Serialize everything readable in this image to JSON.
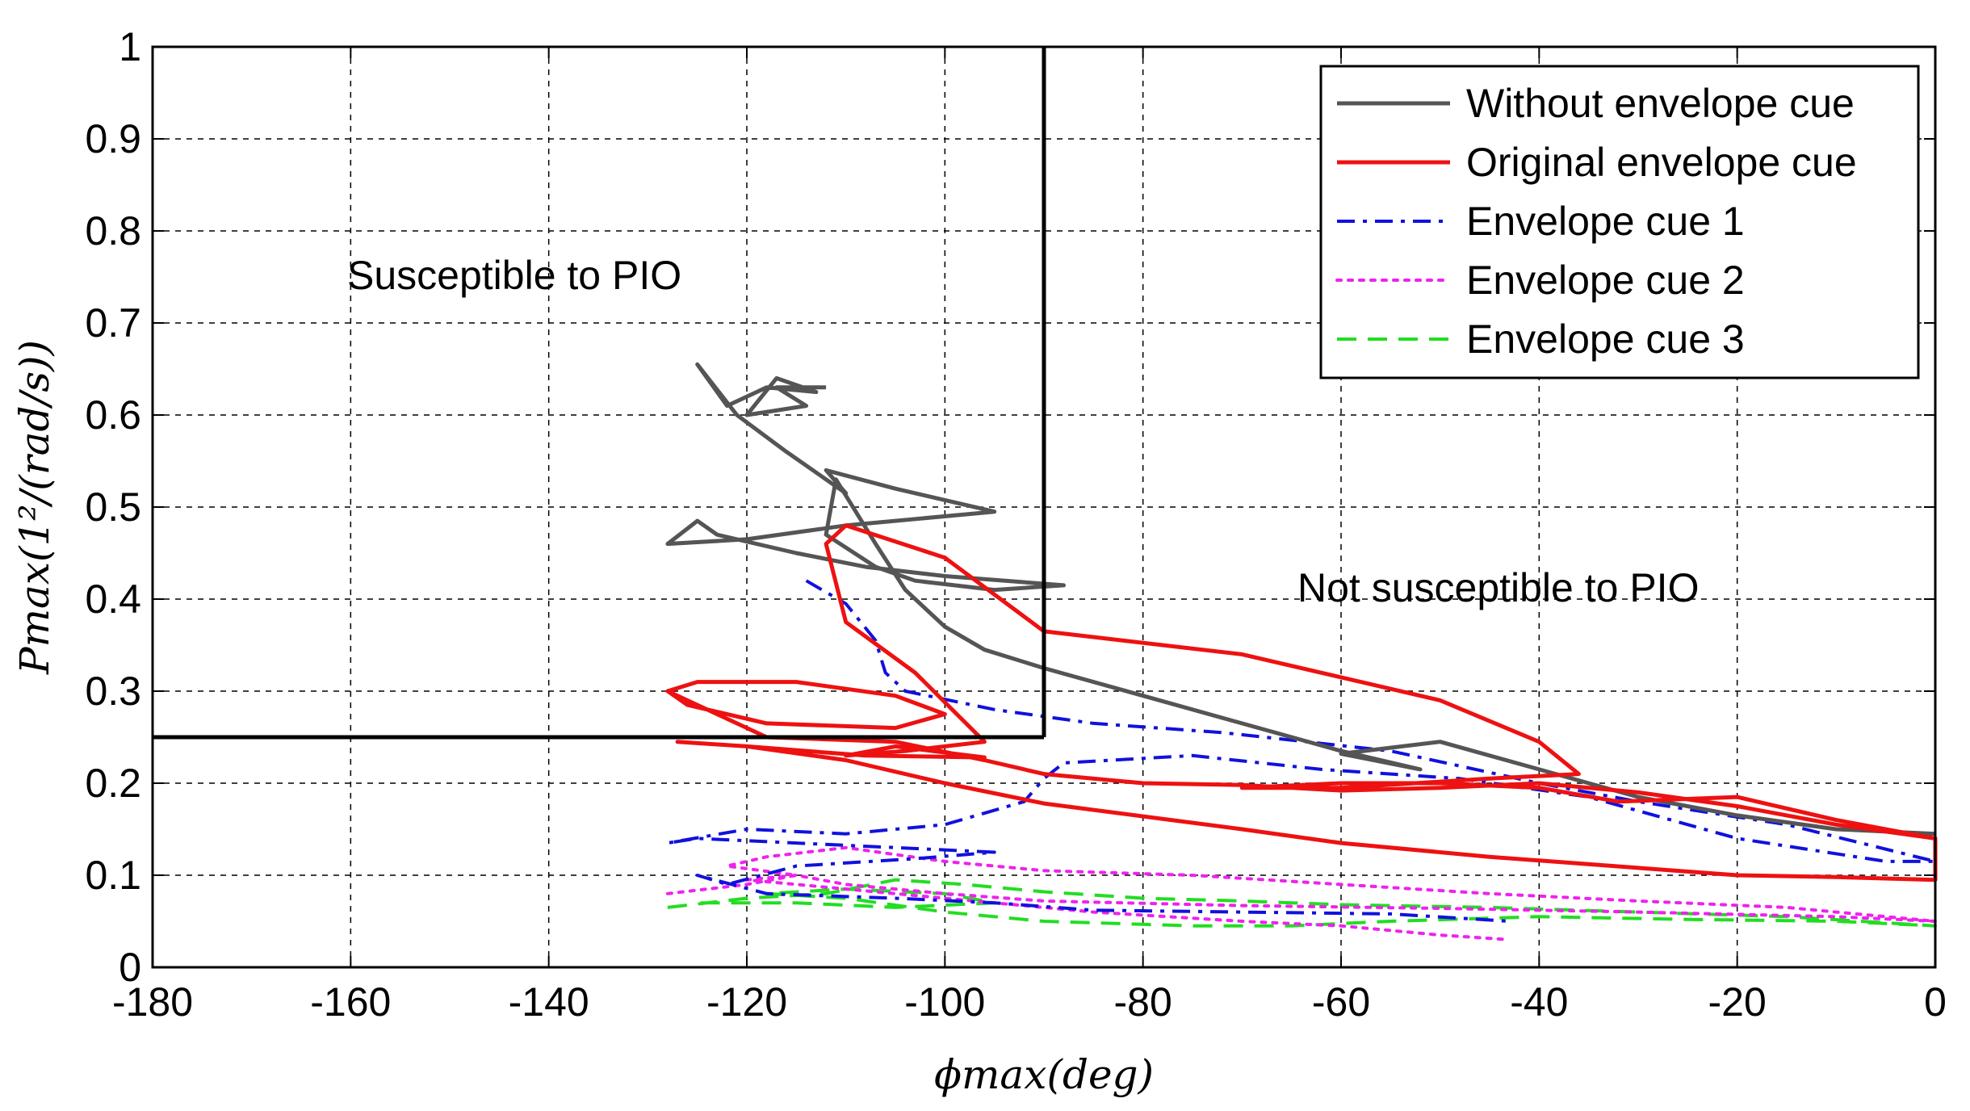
{
  "chart_data": {
    "type": "line",
    "title": "",
    "xlabel": "ϕmax(deg)",
    "ylabel": "Pmax(1²/(rad/s))",
    "xlim": [
      -180,
      0
    ],
    "ylim": [
      0,
      1
    ],
    "xticks": [
      "-180",
      "-160",
      "-140",
      "-120",
      "-100",
      "-80",
      "-60",
      "-40",
      "-20",
      "0"
    ],
    "yticks": [
      "0",
      "0.1",
      "0.2",
      "0.3",
      "0.4",
      "0.5",
      "0.6",
      "0.7",
      "0.8",
      "0.9",
      "1"
    ],
    "grid": true,
    "legend_position": "top-right",
    "boundary": {
      "vertical_x": -90,
      "horizontal_y": 0.25,
      "label_inside": "Susceptible to PIO",
      "label_outside": "Not susceptible to PIO"
    },
    "series": [
      {
        "name": "Without envelope cue",
        "color": "#555555",
        "style": "solid",
        "points": [
          [
            -112,
            0.63
          ],
          [
            -117,
            0.63
          ],
          [
            -114,
            0.61
          ],
          [
            -120,
            0.6
          ],
          [
            -117,
            0.64
          ],
          [
            -113,
            0.625
          ],
          [
            -118,
            0.63
          ],
          [
            -122,
            0.61
          ],
          [
            -125,
            0.655
          ],
          [
            -121,
            0.6
          ],
          [
            -116,
            0.56
          ],
          [
            -110,
            0.515
          ],
          [
            -112,
            0.54
          ],
          [
            -105,
            0.52
          ],
          [
            -95,
            0.495
          ],
          [
            -110,
            0.48
          ],
          [
            -120,
            0.465
          ],
          [
            -128,
            0.46
          ],
          [
            -125,
            0.485
          ],
          [
            -123,
            0.47
          ],
          [
            -115,
            0.45
          ],
          [
            -108,
            0.435
          ],
          [
            -100,
            0.425
          ],
          [
            -88,
            0.415
          ],
          [
            -95,
            0.41
          ],
          [
            -103,
            0.42
          ],
          [
            -107,
            0.435
          ],
          [
            -112,
            0.47
          ],
          [
            -111,
            0.53
          ],
          [
            -107,
            0.46
          ],
          [
            -104,
            0.41
          ],
          [
            -100,
            0.37
          ],
          [
            -96,
            0.345
          ],
          [
            -90,
            0.325
          ],
          [
            -80,
            0.295
          ],
          [
            -70,
            0.265
          ],
          [
            -60,
            0.235
          ],
          [
            -52,
            0.215
          ],
          [
            -60,
            0.232
          ],
          [
            -50,
            0.245
          ],
          [
            -40,
            0.215
          ],
          [
            -30,
            0.185
          ],
          [
            -20,
            0.165
          ],
          [
            -10,
            0.15
          ],
          [
            0,
            0.145
          ]
        ]
      },
      {
        "name": "Original envelope cue",
        "color": "#ee1111",
        "style": "solid",
        "points": [
          [
            -128,
            0.3
          ],
          [
            -125,
            0.31
          ],
          [
            -115,
            0.31
          ],
          [
            -105,
            0.295
          ],
          [
            -100,
            0.275
          ],
          [
            -105,
            0.26
          ],
          [
            -118,
            0.265
          ],
          [
            -126,
            0.285
          ],
          [
            -128,
            0.3
          ],
          [
            -125,
            0.285
          ],
          [
            -118,
            0.25
          ],
          [
            -105,
            0.245
          ],
          [
            -96,
            0.225
          ],
          [
            -90,
            0.21
          ],
          [
            -80,
            0.2
          ],
          [
            -70,
            0.198
          ],
          [
            -60,
            0.192
          ],
          [
            -50,
            0.195
          ],
          [
            -40,
            0.2
          ],
          [
            -30,
            0.19
          ],
          [
            -20,
            0.175
          ],
          [
            -10,
            0.155
          ],
          [
            0,
            0.14
          ],
          [
            0,
            0.095
          ],
          [
            -10,
            0.098
          ],
          [
            -20,
            0.1
          ],
          [
            -30,
            0.108
          ],
          [
            -45,
            0.12
          ],
          [
            -60,
            0.135
          ],
          [
            -70,
            0.15
          ],
          [
            -90,
            0.178
          ],
          [
            -100,
            0.2
          ],
          [
            -110,
            0.225
          ],
          [
            -120,
            0.24
          ],
          [
            -127,
            0.245
          ],
          [
            -120,
            0.24
          ],
          [
            -108,
            0.23
          ],
          [
            -96,
            0.228
          ],
          [
            -105,
            0.24
          ],
          [
            -110,
            0.23
          ],
          [
            -104,
            0.235
          ],
          [
            -96,
            0.245
          ],
          [
            -103,
            0.32
          ],
          [
            -110,
            0.375
          ],
          [
            -112,
            0.46
          ],
          [
            -110,
            0.48
          ],
          [
            -100,
            0.445
          ],
          [
            -90,
            0.365
          ],
          [
            -70,
            0.34
          ],
          [
            -50,
            0.29
          ],
          [
            -40,
            0.245
          ],
          [
            -36,
            0.21
          ],
          [
            -45,
            0.205
          ],
          [
            -60,
            0.195
          ],
          [
            -70,
            0.195
          ],
          [
            -60,
            0.2
          ],
          [
            -50,
            0.2
          ],
          [
            -40,
            0.195
          ],
          [
            -32,
            0.18
          ],
          [
            -20,
            0.185
          ],
          [
            -10,
            0.16
          ],
          [
            0,
            0.14
          ]
        ]
      },
      {
        "name": "Envelope cue 1",
        "color": "#1111dd",
        "style": "dashdot",
        "points": [
          [
            -114,
            0.42
          ],
          [
            -110,
            0.395
          ],
          [
            -107,
            0.355
          ],
          [
            -106,
            0.32
          ],
          [
            -104,
            0.3
          ],
          [
            -95,
            0.28
          ],
          [
            -85,
            0.265
          ],
          [
            -72,
            0.255
          ],
          [
            -55,
            0.235
          ],
          [
            -40,
            0.2
          ],
          [
            -30,
            0.18
          ],
          [
            -15,
            0.155
          ],
          [
            0,
            0.115
          ],
          [
            -5,
            0.115
          ],
          [
            -20,
            0.14
          ],
          [
            -35,
            0.185
          ],
          [
            -48,
            0.205
          ],
          [
            -62,
            0.215
          ],
          [
            -75,
            0.23
          ],
          [
            -88,
            0.222
          ],
          [
            -90,
            0.205
          ],
          [
            -92,
            0.18
          ],
          [
            -100,
            0.155
          ],
          [
            -110,
            0.145
          ],
          [
            -120,
            0.15
          ],
          [
            -128,
            0.135
          ],
          [
            -125,
            0.14
          ],
          [
            -115,
            0.135
          ],
          [
            -105,
            0.13
          ],
          [
            -95,
            0.125
          ],
          [
            -103,
            0.118
          ],
          [
            -115,
            0.11
          ],
          [
            -122,
            0.09
          ],
          [
            -125,
            0.1
          ],
          [
            -118,
            0.08
          ],
          [
            -105,
            0.075
          ],
          [
            -95,
            0.07
          ],
          [
            -85,
            0.062
          ],
          [
            -70,
            0.06
          ],
          [
            -55,
            0.058
          ],
          [
            -43,
            0.05
          ]
        ]
      },
      {
        "name": "Envelope cue 2",
        "color": "#ee22ee",
        "style": "dotted",
        "points": [
          [
            -128,
            0.08
          ],
          [
            -120,
            0.09
          ],
          [
            -115,
            0.1
          ],
          [
            -122,
            0.11
          ],
          [
            -118,
            0.12
          ],
          [
            -110,
            0.13
          ],
          [
            -100,
            0.115
          ],
          [
            -90,
            0.105
          ],
          [
            -75,
            0.1
          ],
          [
            -60,
            0.09
          ],
          [
            -45,
            0.08
          ],
          [
            -30,
            0.072
          ],
          [
            -15,
            0.065
          ],
          [
            0,
            0.05
          ],
          [
            -10,
            0.055
          ],
          [
            -30,
            0.06
          ],
          [
            -50,
            0.064
          ],
          [
            -70,
            0.067
          ],
          [
            -90,
            0.072
          ],
          [
            -100,
            0.08
          ],
          [
            -110,
            0.09
          ],
          [
            -115,
            0.1
          ],
          [
            -120,
            0.095
          ],
          [
            -110,
            0.085
          ],
          [
            -100,
            0.075
          ],
          [
            -85,
            0.06
          ],
          [
            -70,
            0.05
          ],
          [
            -60,
            0.045
          ],
          [
            -50,
            0.035
          ],
          [
            -43,
            0.03
          ]
        ]
      },
      {
        "name": "Envelope cue 3",
        "color": "#22dd22",
        "style": "dashed",
        "points": [
          [
            -128,
            0.065
          ],
          [
            -120,
            0.075
          ],
          [
            -112,
            0.08
          ],
          [
            -105,
            0.095
          ],
          [
            -98,
            0.09
          ],
          [
            -90,
            0.082
          ],
          [
            -80,
            0.075
          ],
          [
            -70,
            0.072
          ],
          [
            -60,
            0.068
          ],
          [
            -45,
            0.065
          ],
          [
            -30,
            0.06
          ],
          [
            -15,
            0.055
          ],
          [
            0,
            0.045
          ],
          [
            -10,
            0.05
          ],
          [
            -25,
            0.052
          ],
          [
            -40,
            0.055
          ],
          [
            -55,
            0.05
          ],
          [
            -65,
            0.045
          ],
          [
            -75,
            0.045
          ],
          [
            -90,
            0.05
          ],
          [
            -100,
            0.06
          ],
          [
            -110,
            0.075
          ],
          [
            -118,
            0.08
          ],
          [
            -110,
            0.085
          ],
          [
            -100,
            0.08
          ],
          [
            -95,
            0.07
          ],
          [
            -105,
            0.065
          ],
          [
            -115,
            0.07
          ],
          [
            -125,
            0.07
          ]
        ]
      }
    ]
  }
}
